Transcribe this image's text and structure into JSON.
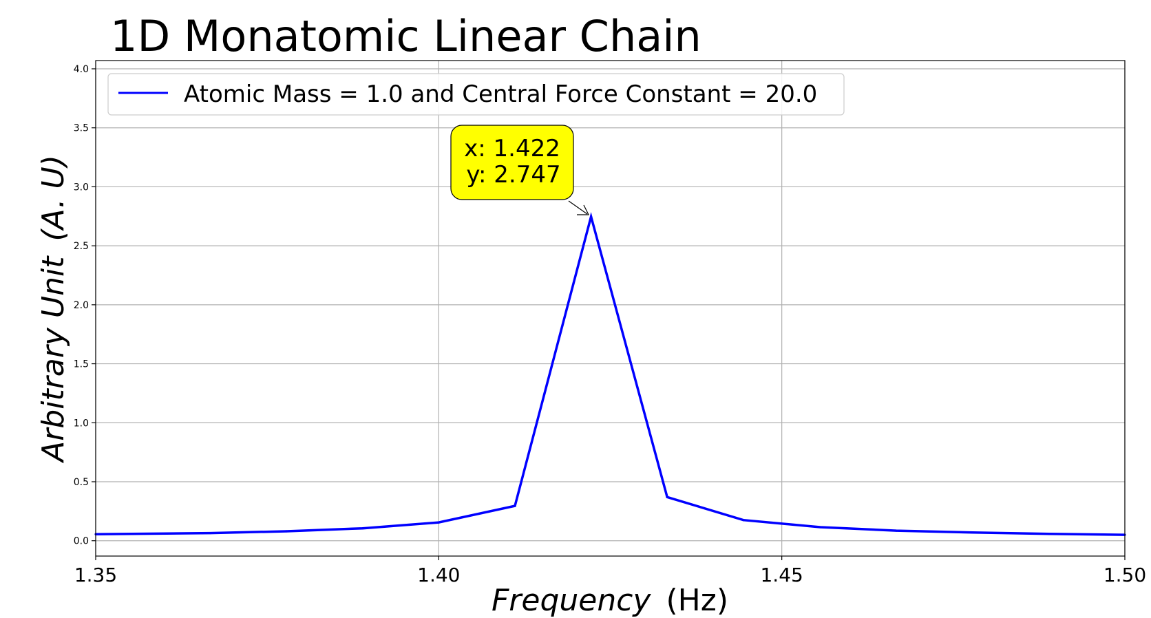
{
  "chart_data": {
    "type": "line",
    "title": "1D Monatomic Linear Chain",
    "xlabel_main": "Frequency",
    "xlabel_unit": "(Hz)",
    "ylabel_main": "Arbitrary Unit",
    "ylabel_unit": "(A. U)",
    "xlim": [
      1.35,
      1.5
    ],
    "ylim": [
      -0.13,
      4.07
    ],
    "xticks": [
      1.35,
      1.4,
      1.45,
      1.5
    ],
    "xtick_labels": [
      "1.35",
      "1.40",
      "1.45",
      "1.50"
    ],
    "yticks": [
      0.0,
      0.5,
      1.0,
      1.5,
      2.0,
      2.5,
      3.0,
      3.5,
      4.0
    ],
    "ytick_labels": [
      "0.0",
      "0.5",
      "1.0",
      "1.5",
      "2.0",
      "2.5",
      "3.0",
      "3.5",
      "4.0"
    ],
    "grid": true,
    "legend_position": "top-left",
    "series": [
      {
        "name": "Atomic Mass = 1.0 and Central Force Constant = 20.0",
        "color": "#0000ff",
        "x": [
          1.35,
          1.3667,
          1.3778,
          1.3889,
          1.4,
          1.4111,
          1.4222,
          1.4333,
          1.4444,
          1.4556,
          1.4667,
          1.4778,
          1.4889,
          1.5
        ],
        "y": [
          0.055,
          0.065,
          0.08,
          0.105,
          0.155,
          0.295,
          2.747,
          0.37,
          0.175,
          0.115,
          0.085,
          0.07,
          0.058,
          0.05
        ]
      }
    ],
    "annotation": {
      "line1": "x: 1.422",
      "line2": "y: 2.747",
      "x": 1.422,
      "y": 2.747,
      "box_color": "#ffff00"
    }
  }
}
